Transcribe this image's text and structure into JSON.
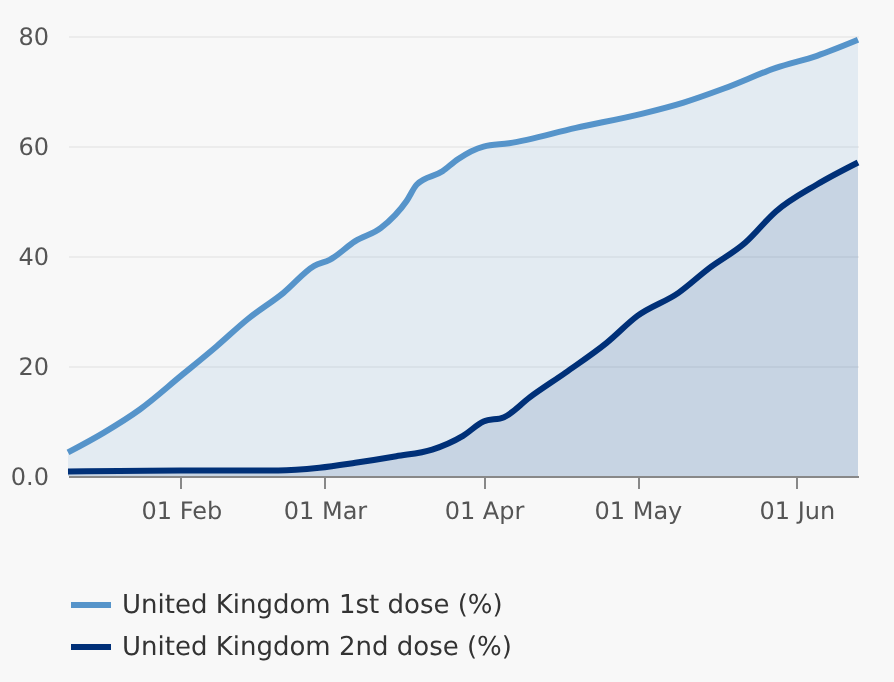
{
  "chart_data": {
    "type": "area",
    "x": [
      "--01-10",
      "--01-17",
      "--01-24",
      "--02-01",
      "--02-08",
      "--02-14",
      "--02-21",
      "--02-27",
      "--03-02",
      "--03-07",
      "--03-12",
      "--03-17",
      "--03-19",
      "--03-24",
      "--03-27",
      "--04-01",
      "--04-06",
      "--04-19",
      "--05-02",
      "--05-10",
      "--05-18",
      "--05-28",
      "--06-05",
      "--06-13"
    ],
    "series": [
      {
        "name": "United Kingdom 1st dose (%)",
        "color": "#5694ca",
        "values": [
          4.3,
          7.9,
          12.1,
          18.2,
          23.6,
          28.5,
          33.3,
          38.2,
          39.3,
          42.7,
          45.1,
          50,
          53,
          55.4,
          57.6,
          59.9,
          60.5,
          63.3,
          65.9,
          67.9,
          70.5,
          74.2,
          76.4,
          79.3
        ]
      },
      {
        "name": "United Kingdom 2nd dose (%)",
        "color": "#003078",
        "x": [
          "--01-10",
          "--02-01",
          "--02-20",
          "--02-28",
          "--03-07",
          "--03-15",
          "--03-22",
          "--03-28",
          "--04-01",
          "--04-05",
          "--04-10",
          "--04-17",
          "--04-25",
          "--05-01",
          "--05-09",
          "--05-15",
          "--05-22",
          "--05-28",
          "--06-05",
          "--06-13"
        ],
        "values": [
          0.8,
          1,
          1,
          1.5,
          2.4,
          3.6,
          4.8,
          7.3,
          9.9,
          10.7,
          14.3,
          18.8,
          24.2,
          29.1,
          33.3,
          37.8,
          42.4,
          48.1,
          53,
          57
        ]
      }
    ],
    "xlim": [
      "--01-10",
      "--06-13"
    ],
    "xticks": [
      {
        "value": "--02-01",
        "label": "01 Feb"
      },
      {
        "value": "--03-01",
        "label": "01 Mar"
      },
      {
        "value": "--04-01",
        "label": "01 Apr"
      },
      {
        "value": "--05-01",
        "label": "01 May"
      },
      {
        "value": "--06-01",
        "label": "01 Jun"
      }
    ],
    "ylim": [
      0,
      80
    ],
    "yticks": [
      {
        "value": 0,
        "label": "0.0"
      },
      20,
      40,
      60,
      80
    ],
    "grid": "y",
    "legend": "bottom"
  }
}
